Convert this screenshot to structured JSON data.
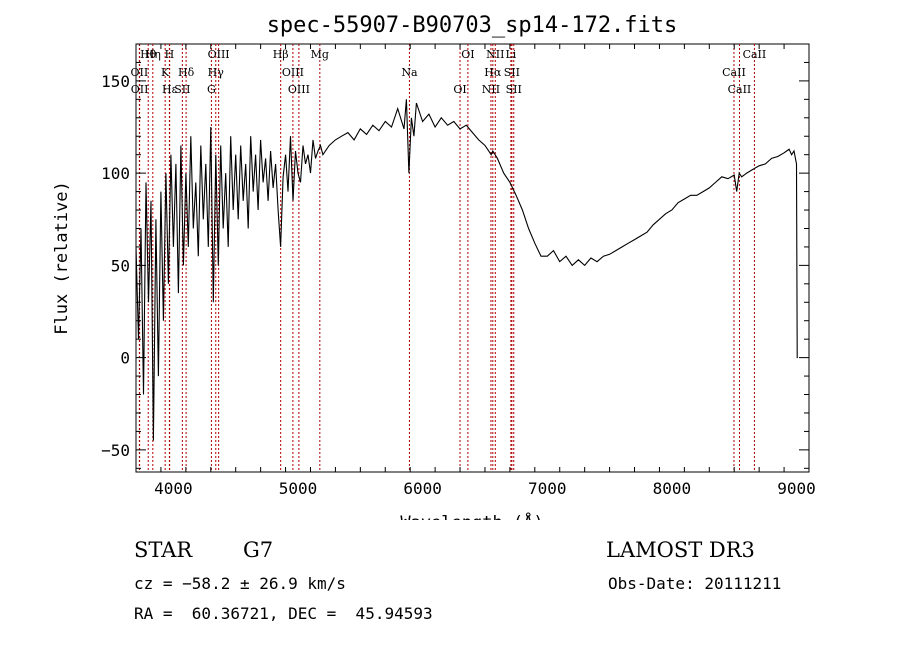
{
  "chart_data": {
    "type": "line",
    "title": "spec-55907-B90703_sp14-172.fits",
    "xlabel": "Wavelength (Å)",
    "ylabel": "Flux (relative)",
    "xlim": [
      3700,
      9100
    ],
    "ylim": [
      -62,
      170
    ],
    "xticks": [
      4000,
      5000,
      6000,
      7000,
      8000,
      9000
    ],
    "yticks": [
      -50,
      0,
      50,
      100,
      150
    ],
    "grid": false,
    "series": [
      {
        "name": "flux",
        "x": [
          3700,
          3720,
          3740,
          3760,
          3780,
          3800,
          3820,
          3840,
          3860,
          3880,
          3900,
          3920,
          3940,
          3960,
          3980,
          4000,
          4020,
          4040,
          4060,
          4080,
          4100,
          4120,
          4140,
          4160,
          4180,
          4200,
          4220,
          4240,
          4260,
          4280,
          4300,
          4320,
          4340,
          4360,
          4380,
          4400,
          4420,
          4440,
          4460,
          4480,
          4500,
          4520,
          4540,
          4560,
          4580,
          4600,
          4620,
          4640,
          4660,
          4680,
          4700,
          4720,
          4740,
          4760,
          4780,
          4800,
          4820,
          4840,
          4860,
          4880,
          4900,
          4920,
          4940,
          4960,
          4980,
          5000,
          5020,
          5040,
          5060,
          5080,
          5100,
          5120,
          5140,
          5160,
          5180,
          5200,
          5250,
          5300,
          5350,
          5400,
          5450,
          5500,
          5550,
          5600,
          5650,
          5700,
          5750,
          5800,
          5850,
          5870,
          5890,
          5910,
          5930,
          5950,
          6000,
          6050,
          6100,
          6150,
          6200,
          6250,
          6300,
          6350,
          6400,
          6450,
          6500,
          6550,
          6563,
          6600,
          6650,
          6700,
          6750,
          6800,
          6850,
          6900,
          6950,
          7000,
          7050,
          7100,
          7150,
          7200,
          7250,
          7300,
          7350,
          7400,
          7450,
          7500,
          7550,
          7600,
          7650,
          7700,
          7750,
          7800,
          7850,
          7900,
          7950,
          8000,
          8050,
          8100,
          8150,
          8200,
          8250,
          8300,
          8350,
          8400,
          8450,
          8500,
          8520,
          8540,
          8560,
          8600,
          8650,
          8700,
          8750,
          8800,
          8850,
          8900,
          8920,
          8940,
          8960,
          8980,
          9000,
          9005,
          9010
        ],
        "values": [
          60,
          10,
          70,
          -20,
          95,
          30,
          85,
          -45,
          75,
          -10,
          90,
          20,
          100,
          40,
          110,
          60,
          105,
          35,
          115,
          50,
          100,
          60,
          120,
          70,
          95,
          55,
          115,
          75,
          105,
          60,
          125,
          30,
          110,
          50,
          115,
          70,
          100,
          60,
          120,
          80,
          110,
          75,
          115,
          85,
          105,
          70,
          120,
          90,
          110,
          80,
          118,
          95,
          108,
          85,
          112,
          92,
          105,
          80,
          60,
          98,
          110,
          90,
          120,
          85,
          112,
          100,
          95,
          115,
          105,
          110,
          100,
          118,
          108,
          112,
          115,
          110,
          115,
          118,
          120,
          122,
          118,
          124,
          121,
          126,
          123,
          128,
          125,
          135,
          124,
          140,
          100,
          130,
          120,
          138,
          128,
          132,
          125,
          130,
          126,
          128,
          124,
          126,
          122,
          118,
          115,
          110,
          112,
          108,
          100,
          95,
          88,
          80,
          70,
          62,
          55,
          55,
          58,
          52,
          55,
          50,
          53,
          50,
          54,
          52,
          55,
          56,
          58,
          60,
          62,
          64,
          66,
          68,
          72,
          75,
          78,
          80,
          84,
          86,
          88,
          88,
          90,
          92,
          95,
          98,
          97,
          99,
          90,
          100,
          98,
          100,
          102,
          104,
          105,
          108,
          109,
          111,
          112,
          113,
          110,
          112,
          105,
          0,
          0
        ]
      }
    ],
    "spectral_lines": [
      {
        "name": "Hθ",
        "x": 3798
      },
      {
        "name": "OII",
        "x": 3727
      },
      {
        "name": "OII",
        "x": 3729
      },
      {
        "name": "Hη",
        "x": 3835
      },
      {
        "name": "K",
        "x": 3934
      },
      {
        "name": "Hε",
        "x": 3970
      },
      {
        "name": "H",
        "x": 3968
      },
      {
        "name": "Hδ",
        "x": 4102
      },
      {
        "name": "SII",
        "x": 4072
      },
      {
        "name": "OIII",
        "x": 4363
      },
      {
        "name": "Hγ",
        "x": 4340
      },
      {
        "name": "G",
        "x": 4305
      },
      {
        "name": "Hβ",
        "x": 4861
      },
      {
        "name": "OIII",
        "x": 4959
      },
      {
        "name": "OIII",
        "x": 5007
      },
      {
        "name": "Mg",
        "x": 5175
      },
      {
        "name": "Na",
        "x": 5894
      },
      {
        "name": "OI",
        "x": 6300
      },
      {
        "name": "OI",
        "x": 6363
      },
      {
        "name": "Hα",
        "x": 6563
      },
      {
        "name": "NII",
        "x": 6548
      },
      {
        "name": "NII",
        "x": 6583
      },
      {
        "name": "SII",
        "x": 6716
      },
      {
        "name": "SII",
        "x": 6731
      },
      {
        "name": "Li",
        "x": 6708
      },
      {
        "name": "CaII",
        "x": 8498
      },
      {
        "name": "CaII",
        "x": 8542
      },
      {
        "name": "CaII",
        "x": 8662
      }
    ],
    "line_color": "#b00000"
  },
  "info": {
    "object_class": "STAR",
    "subclass": "G7",
    "survey": "LAMOST DR3",
    "redshift": "cz = −58.2 ± 26.9 km/s",
    "obs_date": "Obs-Date: 20111211",
    "coords": "RA =  60.36721, DEC =  45.94593"
  }
}
